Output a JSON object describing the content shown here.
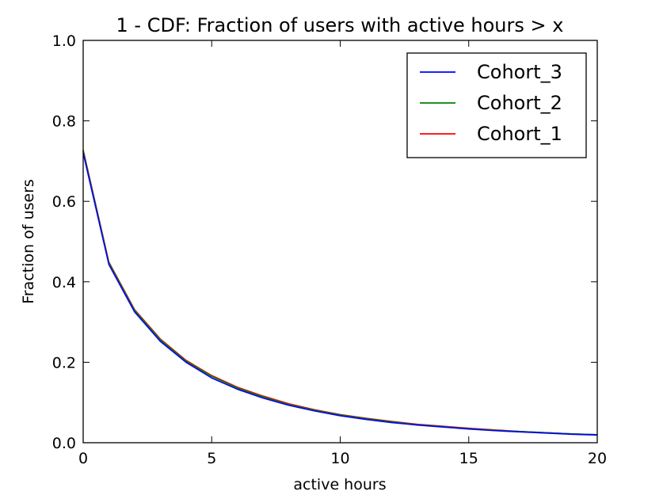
{
  "chart_data": {
    "type": "line",
    "title": "1 - CDF: Fraction of users with active hours > x",
    "xlabel": "active hours",
    "ylabel": "Fraction of users",
    "xlim": [
      0,
      20
    ],
    "ylim": [
      0,
      1.0
    ],
    "xticks": [
      "0",
      "5",
      "10",
      "15",
      "20"
    ],
    "yticks": [
      "0.0",
      "0.2",
      "0.4",
      "0.6",
      "0.8",
      "1.0"
    ],
    "grid": false,
    "legend_position": "top-right",
    "x": [
      0,
      1,
      2,
      3,
      4,
      5,
      6,
      7,
      8,
      9,
      10,
      11,
      12,
      13,
      14,
      15,
      16,
      17,
      18,
      19,
      20
    ],
    "series": [
      {
        "name": "Cohort_3",
        "color": "#0000ff",
        "values": [
          0.72,
          0.443,
          0.325,
          0.252,
          0.2,
          0.161,
          0.133,
          0.111,
          0.093,
          0.079,
          0.067,
          0.058,
          0.05,
          0.044,
          0.039,
          0.034,
          0.03,
          0.027,
          0.024,
          0.021,
          0.019
        ]
      },
      {
        "name": "Cohort_2",
        "color": "#008000",
        "values": [
          0.725,
          0.447,
          0.329,
          0.256,
          0.203,
          0.165,
          0.136,
          0.114,
          0.095,
          0.081,
          0.069,
          0.06,
          0.052,
          0.045,
          0.04,
          0.035,
          0.031,
          0.028,
          0.025,
          0.022,
          0.02
        ]
      },
      {
        "name": "Cohort_1",
        "color": "#ff0000",
        "values": [
          0.728,
          0.449,
          0.331,
          0.258,
          0.205,
          0.167,
          0.138,
          0.116,
          0.097,
          0.082,
          0.07,
          0.061,
          0.053,
          0.046,
          0.041,
          0.036,
          0.032,
          0.028,
          0.025,
          0.022,
          0.02
        ]
      }
    ]
  }
}
